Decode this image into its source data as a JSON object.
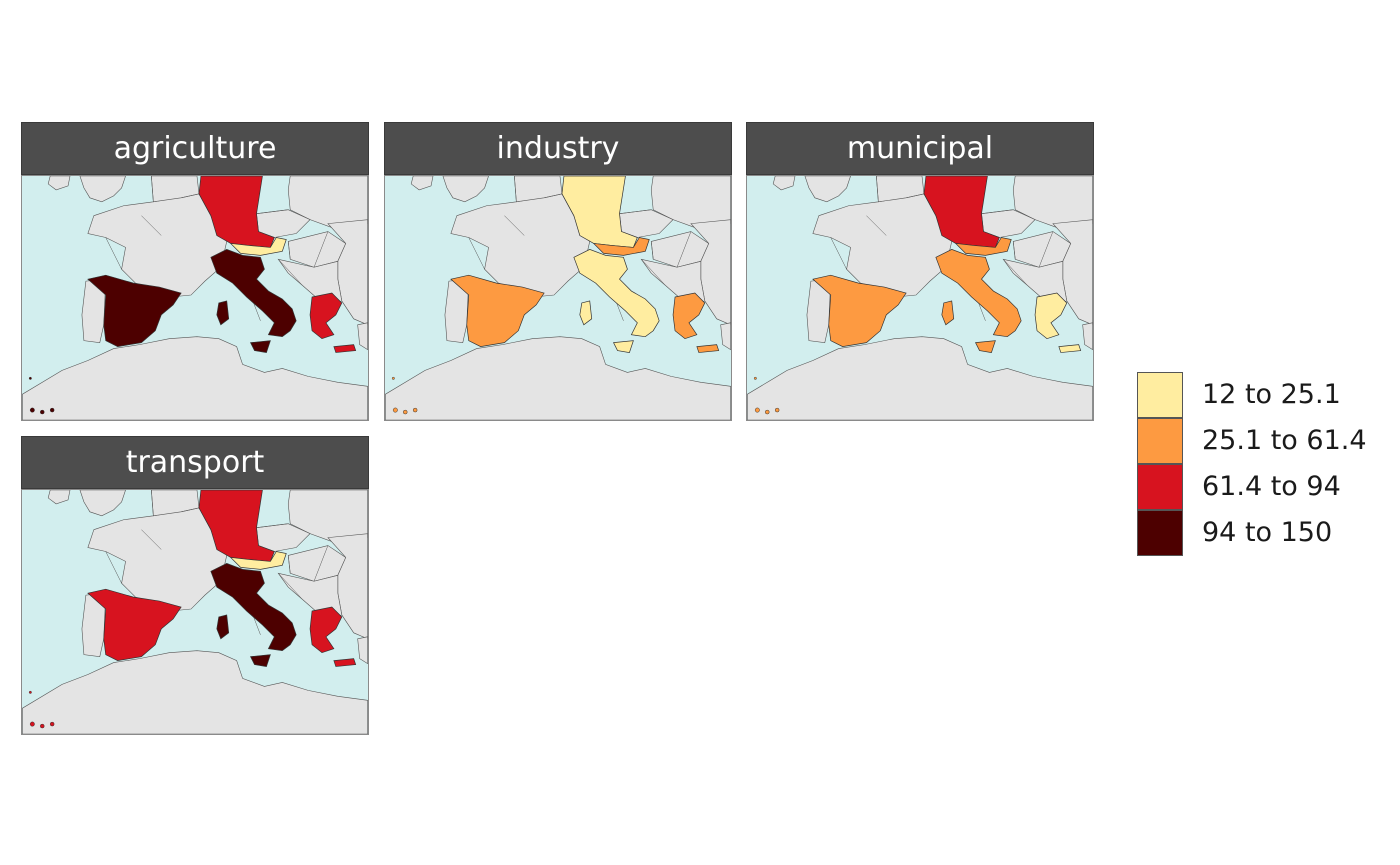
{
  "colors": {
    "sea": "#d2eeee",
    "land": "#e4e4e4",
    "border": "#555555",
    "header_bg": "#4d4d4d"
  },
  "legend": [
    {
      "label": "12 to 25.1",
      "color": "#ffeda0"
    },
    {
      "label": "25.1 to 61.4",
      "color": "#fd9a41"
    },
    {
      "label": "61.4 to 94",
      "color": "#d7131f"
    },
    {
      "label": "94 to 150",
      "color": "#4d0000"
    }
  ],
  "panels": [
    {
      "title": "agriculture",
      "classes": {
        "germany": 2,
        "austria": 0,
        "italy": 3,
        "spain": 3,
        "greece": 2
      }
    },
    {
      "title": "industry",
      "classes": {
        "germany": 0,
        "austria": 1,
        "italy": 0,
        "spain": 1,
        "greece": 1
      }
    },
    {
      "title": "municipal",
      "classes": {
        "germany": 2,
        "austria": 1,
        "italy": 1,
        "spain": 1,
        "greece": 0
      }
    },
    {
      "title": "transport",
      "classes": {
        "germany": 2,
        "austria": 0,
        "italy": 3,
        "spain": 2,
        "greece": 2
      }
    }
  ]
}
